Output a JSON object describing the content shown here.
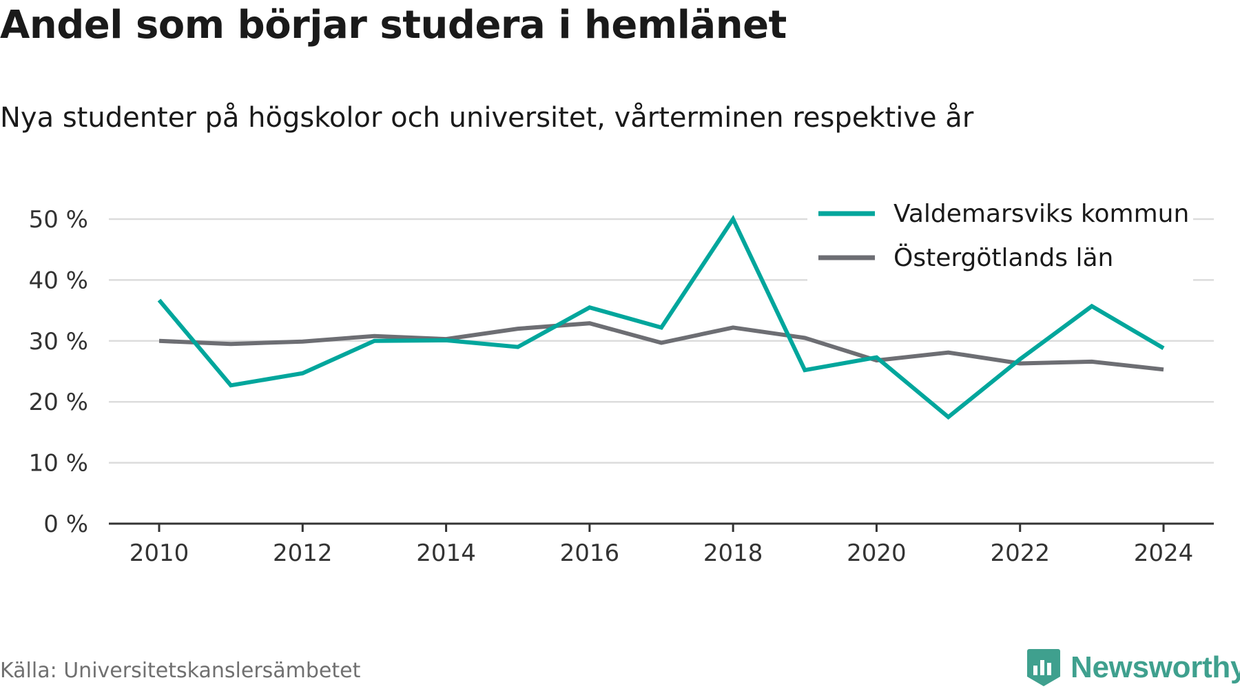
{
  "title": "Andel som börjar studera i hemlänet",
  "subtitle": "Nya studenter på högskolor och universitet, vårterminen respektive år",
  "source": "Källa: Universitetskanslersämbetet",
  "brand": {
    "name": "Newsworthy",
    "icon": "bar-chart-badge-icon",
    "color": "#3fa08e"
  },
  "chart_data": {
    "type": "line",
    "title": "Andel som börjar studera i hemlänet",
    "subtitle": "Nya studenter på högskolor och universitet, vårterminen respektive år",
    "x": [
      2010,
      2011,
      2012,
      2013,
      2014,
      2015,
      2016,
      2017,
      2018,
      2019,
      2020,
      2021,
      2022,
      2023,
      2024
    ],
    "x_ticks": [
      "2010",
      "2012",
      "2014",
      "2016",
      "2018",
      "2020",
      "2022",
      "2024"
    ],
    "y_ticks": [
      "0 %",
      "10 %",
      "20 %",
      "30 %",
      "40 %",
      "50 %"
    ],
    "ylim": [
      0,
      50
    ],
    "grid": true,
    "legend_position": "top-right",
    "series": [
      {
        "name": "Valdemarsviks kommun",
        "color": "#00a69c",
        "values": [
          36.7,
          22.7,
          24.7,
          30.0,
          30.1,
          29.0,
          35.5,
          32.2,
          50.0,
          25.2,
          27.3,
          17.5,
          27.0,
          35.7,
          28.8
        ]
      },
      {
        "name": "Östergötlands län",
        "color": "#6d6e73",
        "values": [
          30.0,
          29.5,
          29.9,
          30.8,
          30.3,
          32.0,
          32.9,
          29.7,
          32.2,
          30.5,
          26.8,
          28.1,
          26.3,
          26.6,
          25.3
        ]
      }
    ]
  }
}
